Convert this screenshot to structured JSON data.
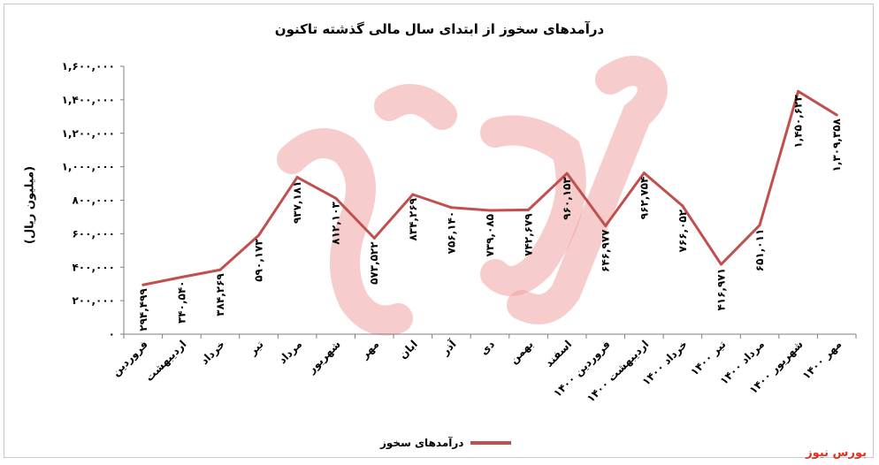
{
  "chart_data": {
    "type": "line",
    "title": "درآمدهای سخوز از ابتدای سال مالی گذشته تاکنون",
    "ylabel": "(میلیون ریال)",
    "xlabel": "",
    "ylim": [
      0,
      1600000
    ],
    "y_ticks": [
      0,
      200000,
      400000,
      600000,
      800000,
      1000000,
      1200000,
      1400000,
      1600000
    ],
    "y_tick_labels": [
      "۰",
      "۲۰۰,۰۰۰",
      "۴۰۰,۰۰۰",
      "۶۰۰,۰۰۰",
      "۸۰۰,۰۰۰",
      "۱,۰۰۰,۰۰۰",
      "۱,۲۰۰,۰۰۰",
      "۱,۴۰۰,۰۰۰",
      "۱,۶۰۰,۰۰۰"
    ],
    "categories": [
      "فروردین",
      "اردیبهشت",
      "خرداد",
      "تیر",
      "مرداد",
      "شهریور",
      "مهر",
      "ابان",
      "آذر",
      "دی",
      "بهمن",
      "اسفند",
      "فروردین ۱۴۰۰",
      "اردیبهشت ۱۴۰۰",
      "خرداد ۱۴۰۰",
      "تیر ۱۴۰۰",
      "مرداد ۱۴۰۰",
      "شهریور ۱۴۰۰",
      "مهر ۱۴۰۰"
    ],
    "series": [
      {
        "name": "درآمدهای سخوز",
        "color": "#c0504d",
        "values": [
          294499,
          340540,
          384269,
          590173,
          937181,
          812103,
          573522,
          834269,
          756140,
          739085,
          742679,
          960153,
          646977,
          962754,
          766052,
          416971,
          651011,
          1450623,
          1309358
        ],
        "labels": [
          "۲۹۴,۴۹۹",
          "۳۴۰,۵۴۰",
          "۳۸۴,۲۶۹",
          "۵۹۰,۱۷۳",
          "۹۳۷,۱۸۱",
          "۸۱۲,۱۰۳",
          "۵۷۳,۵۲۲",
          "۸۳۴,۲۶۹",
          "۷۵۶,۱۴۰",
          "۷۳۹,۰۸۵",
          "۷۴۲,۶۷۹",
          "۹۶۰,۱۵۳",
          "۶۴۶,۹۷۷",
          "۹۶۲,۷۵۴",
          "۷۶۶,۰۵۲",
          "۴۱۶,۹۷۱",
          "۶۵۱,۰۱۱",
          "۱,۴۵۰,۶۲۳",
          "۱,۳۰۹,۳۵۸"
        ]
      }
    ],
    "grid": false,
    "legend_position": "bottom"
  },
  "watermark": {
    "text": "بورس نیوز",
    "color": "#e0301e"
  }
}
